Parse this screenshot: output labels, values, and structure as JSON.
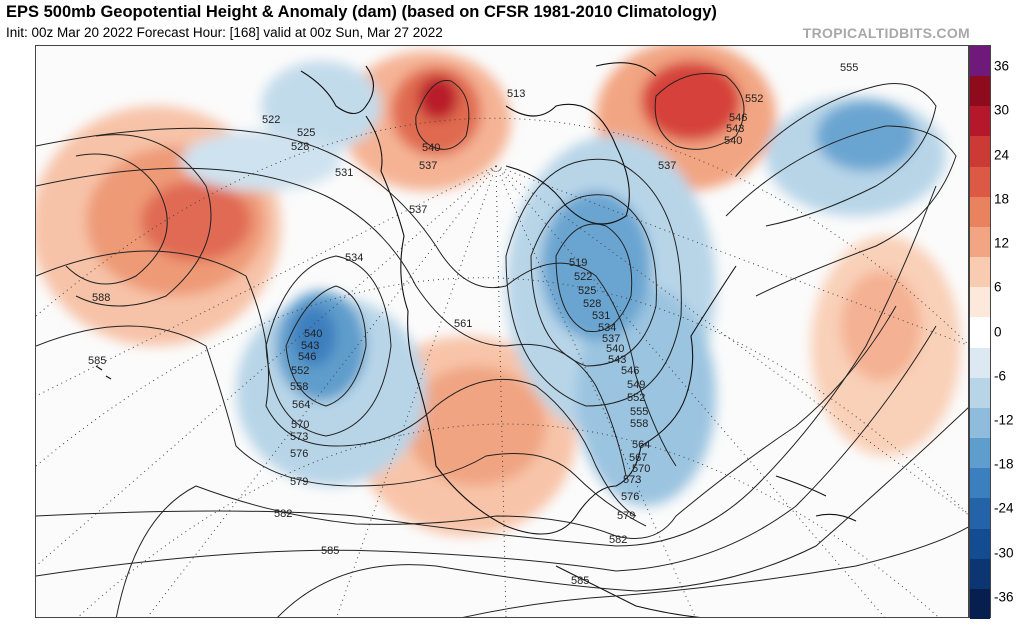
{
  "header": {
    "title": "EPS 500mb Geopotential Height & Anomaly (dam) (based on CFSR 1981-2010 Climatology)",
    "subtitle": "Init: 00z Mar 20 2022   Forecast Hour: [168]   valid at 00z Sun, Mar 27 2022",
    "brand": "TROPICALTIDBITS.COM"
  },
  "colorbar": {
    "ticks": [
      "36",
      "30",
      "24",
      "18",
      "12",
      "6",
      "0",
      "-6",
      "-12",
      "-18",
      "-24",
      "-30",
      "-36"
    ],
    "colors": [
      "#6f1a7a",
      "#8e0b1e",
      "#b4182a",
      "#cc3a36",
      "#dc5a45",
      "#e8825f",
      "#f2a582",
      "#f9cbb1",
      "#fde9dc",
      "#ffffff",
      "#dce9f3",
      "#b8d5e8",
      "#8fbcdc",
      "#5f9dcc",
      "#3c7fbe",
      "#2463a8",
      "#134c90",
      "#0b3672",
      "#071f4e"
    ]
  },
  "contour_labels": [
    "522",
    "525",
    "528",
    "531",
    "537",
    "540",
    "513",
    "552",
    "546",
    "543",
    "540",
    "537",
    "555",
    "534",
    "537",
    "519",
    "522",
    "525",
    "528",
    "531",
    "534",
    "537",
    "540",
    "543",
    "546",
    "549",
    "552",
    "555",
    "558",
    "564",
    "567",
    "570",
    "573",
    "576",
    "579",
    "582",
    "585",
    "540",
    "543",
    "546",
    "552",
    "558",
    "564",
    "570",
    "573",
    "576",
    "579",
    "582",
    "585",
    "588",
    "585",
    "561"
  ]
}
